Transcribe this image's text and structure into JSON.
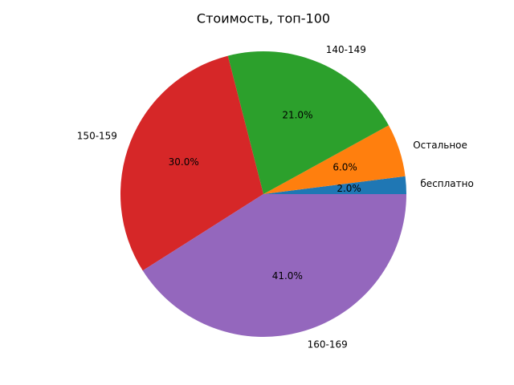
{
  "chart_data": {
    "type": "pie",
    "title": "Стоимость, топ-100",
    "categories": [
      "бесплатно",
      "Остальное",
      "140-149",
      "150-159",
      "160-169"
    ],
    "values": [
      2,
      6,
      21,
      30,
      41
    ],
    "value_labels": [
      "2.0%",
      "6.0%",
      "21.0%",
      "30.0%",
      "41.0%"
    ],
    "colors": [
      "#1f77b4",
      "#ff7f0e",
      "#2ca02c",
      "#d62728",
      "#9467bd"
    ]
  }
}
